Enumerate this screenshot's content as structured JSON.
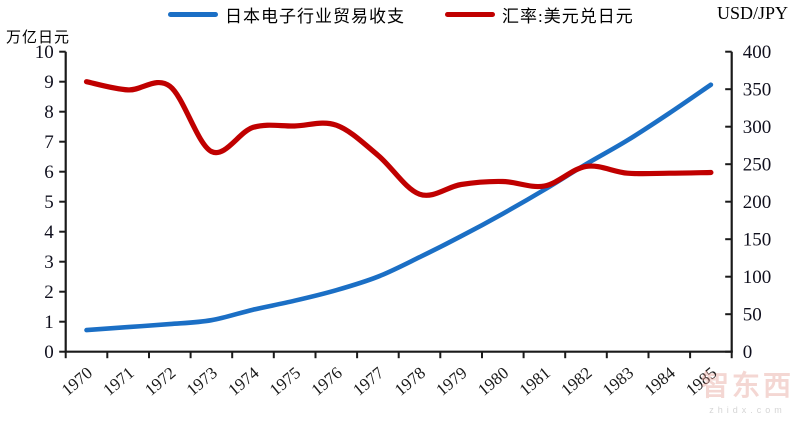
{
  "header": {
    "left_axis_title": "万亿日元",
    "right_axis_title": "USD/JPY"
  },
  "legend": [
    {
      "label": "日本电子行业贸易收支",
      "color": "#1B6FC5"
    },
    {
      "label": "汇率:美元兑日元",
      "color": "#C00000"
    }
  ],
  "watermark": {
    "text": "智东西",
    "subtext": "zhidx.com"
  },
  "chart_data": {
    "type": "line",
    "x": [
      1970,
      1971,
      1972,
      1973,
      1974,
      1975,
      1976,
      1977,
      1978,
      1979,
      1980,
      1981,
      1982,
      1983,
      1984,
      1985
    ],
    "series": [
      {
        "name": "日本电子行业贸易收支",
        "axis": "left",
        "color": "#1B6FC5",
        "line_width": 4.6,
        "values": [
          0.72,
          0.82,
          0.92,
          1.05,
          1.4,
          1.7,
          2.05,
          2.5,
          3.15,
          3.85,
          4.6,
          5.4,
          6.25,
          7.05,
          7.95,
          8.9
        ]
      },
      {
        "name": "汇率:美元兑日元",
        "axis": "right",
        "color": "#C00000",
        "line_width": 5.2,
        "values": [
          360,
          349,
          354,
          267,
          299,
          301,
          302,
          262,
          210,
          223,
          227,
          221,
          247,
          238,
          238,
          239
        ]
      }
    ],
    "left_axis": {
      "title": "万亿日元",
      "min": 0,
      "max": 10,
      "step": 1,
      "tick_labels": [
        "0",
        "1",
        "2",
        "3",
        "4",
        "5",
        "6",
        "7",
        "8",
        "9",
        "10"
      ]
    },
    "right_axis": {
      "title": "USD/JPY",
      "min": 0,
      "max": 400,
      "step": 50,
      "tick_labels": [
        "0",
        "50",
        "100",
        "150",
        "200",
        "250",
        "300",
        "350",
        "400"
      ]
    },
    "x_axis": {
      "tick_labels": [
        "1970",
        "1971",
        "1972",
        "1973",
        "1974",
        "1975",
        "1976",
        "1977",
        "1978",
        "1979",
        "1980",
        "1981",
        "1982",
        "1983",
        "1984",
        "1985"
      ],
      "label_rotation": -40
    },
    "grid": false,
    "legend_position": "top",
    "smooth_lines": true
  }
}
